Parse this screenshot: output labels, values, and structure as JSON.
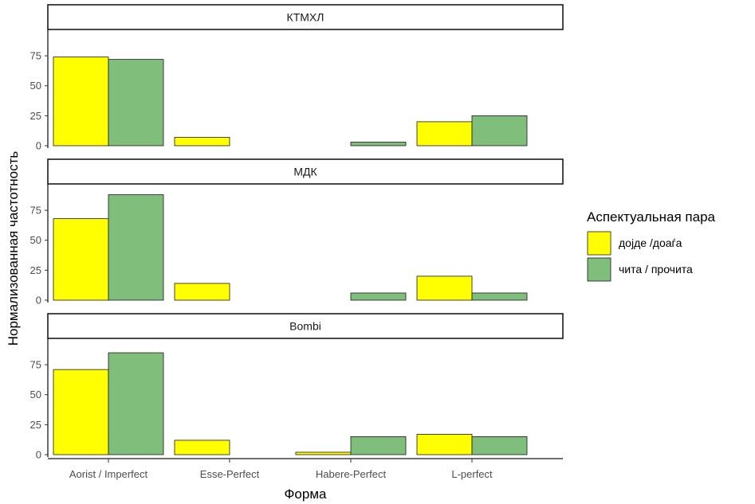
{
  "chart_data": {
    "type": "bar",
    "layout": "faceted-vertical",
    "xlabel": "Форма",
    "ylabel": "Нормализованная частотность",
    "categories": [
      "Aorist / Imperfect",
      "Esse-Perfect",
      "Habere-Perfect",
      "L-perfect"
    ],
    "ylim": [
      0,
      97
    ],
    "yticks": [
      0,
      25,
      50,
      75
    ],
    "grid": false,
    "legend": {
      "title": "Аспектуальная пара",
      "position": "right",
      "entries": [
        {
          "label": "дојде /доаѓа",
          "color": "#FFFF00"
        },
        {
          "label": "чита / прочита",
          "color": "#7FBF7B"
        }
      ]
    },
    "panels": [
      {
        "title": "КТМХЛ",
        "series": [
          {
            "name": "дојде /доаѓа",
            "values": [
              74,
              7,
              0,
              20
            ]
          },
          {
            "name": "чита / прочита",
            "values": [
              72,
              0,
              3,
              25
            ]
          }
        ]
      },
      {
        "title": "МДК",
        "series": [
          {
            "name": "дојде /доаѓа",
            "values": [
              68,
              14,
              0,
              20
            ]
          },
          {
            "name": "чита / прочита",
            "values": [
              88,
              0,
              6,
              6
            ]
          }
        ]
      },
      {
        "title": "Bombi",
        "series": [
          {
            "name": "дојде /доаѓа",
            "values": [
              71,
              12,
              2,
              17
            ]
          },
          {
            "name": "чита / прочита",
            "values": [
              85,
              0,
              15,
              15
            ]
          }
        ]
      }
    ]
  }
}
